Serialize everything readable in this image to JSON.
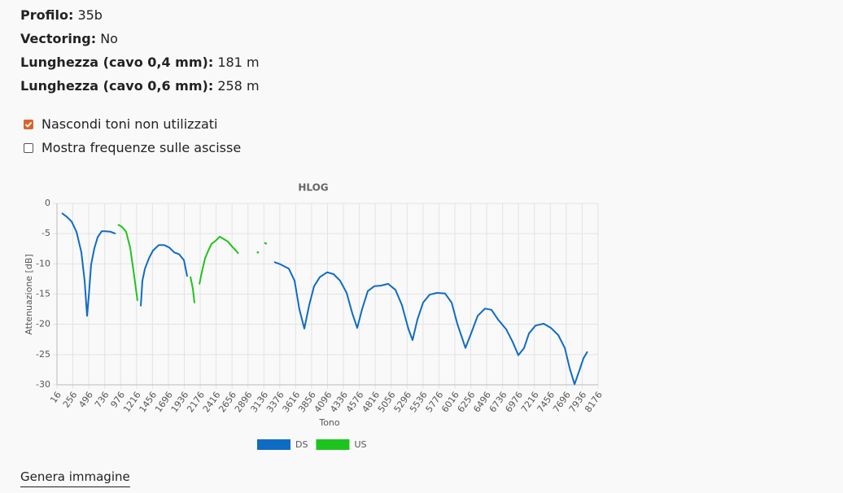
{
  "info": [
    {
      "label": "Profilo:",
      "value": "35b"
    },
    {
      "label": "Vectoring:",
      "value": "No"
    },
    {
      "label": "Lunghezza (cavo 0,4 mm):",
      "value": "181 m"
    },
    {
      "label": "Lunghezza (cavo 0,6 mm):",
      "value": "258 m"
    }
  ],
  "options": [
    {
      "label": "Nascondi toni non utilizzati",
      "checked": true
    },
    {
      "label": "Mostra frequenze sulle ascisse",
      "checked": false
    }
  ],
  "chart_data": {
    "type": "line",
    "title": "HLOG",
    "x_label": "Tono",
    "y_label": "Attenuazione [dB]",
    "xlim": [
      16,
      8176
    ],
    "ylim": [
      -30,
      0
    ],
    "xticks": [
      16,
      256,
      496,
      736,
      976,
      1216,
      1456,
      1696,
      1936,
      2176,
      2416,
      2656,
      2896,
      3136,
      3376,
      3616,
      3856,
      4096,
      4336,
      4576,
      4816,
      5056,
      5296,
      5536,
      5776,
      6016,
      6256,
      6496,
      6736,
      6976,
      7216,
      7456,
      7696,
      7936,
      8176
    ],
    "yticks": [
      0,
      -5,
      -10,
      -15,
      -20,
      -25,
      -30
    ],
    "grid": true,
    "series": [
      {
        "name": "DS",
        "color": "#0f6cc4",
        "x": [
          90,
          163,
          237,
          310,
          384,
          433,
          470,
          494,
          531,
          580,
          629,
          691,
          752,
          826,
          900,
          null,
          1280,
          1305,
          1342,
          1403,
          1464,
          1550,
          1636,
          1710,
          1783,
          1857,
          1931,
          1980,
          null,
          3292,
          3390,
          3513,
          3599,
          3672,
          3746,
          3820,
          3893,
          3979,
          4090,
          4188,
          4286,
          4384,
          4470,
          4544,
          4617,
          4703,
          4801,
          4899,
          5010,
          5120,
          5218,
          5317,
          5378,
          5452,
          5538,
          5636,
          5746,
          5869,
          5967,
          6053,
          6176,
          6262,
          6360,
          6470,
          6568,
          6667,
          6789,
          6888,
          6974,
          7060,
          7134,
          7232,
          7355,
          7465,
          7576,
          7674,
          7747,
          7821,
          7895,
          7956,
          8017
        ],
        "values": [
          -1.6,
          -2.2,
          -3.0,
          -4.7,
          -8.1,
          -12.8,
          -18.6,
          -15.5,
          -10.1,
          -7.4,
          -5.6,
          -4.6,
          -4.6,
          -4.7,
          -5.0,
          null,
          -17.0,
          -12.8,
          -10.8,
          -9.1,
          -7.8,
          -6.9,
          -6.9,
          -7.3,
          -8.1,
          -8.4,
          -9.4,
          -12.1,
          null,
          -9.7,
          -10.1,
          -10.8,
          -12.8,
          -17.5,
          -20.7,
          -16.8,
          -13.7,
          -12.2,
          -11.4,
          -11.7,
          -12.8,
          -14.8,
          -18.2,
          -20.6,
          -17.5,
          -14.5,
          -13.7,
          -13.6,
          -13.3,
          -14.3,
          -16.8,
          -20.8,
          -22.6,
          -19.2,
          -16.4,
          -15.1,
          -14.8,
          -14.9,
          -16.4,
          -19.9,
          -23.9,
          -21.5,
          -18.6,
          -17.4,
          -17.6,
          -19.2,
          -20.8,
          -22.9,
          -25.1,
          -23.9,
          -21.5,
          -20.2,
          -19.9,
          -20.6,
          -21.8,
          -23.9,
          -27.2,
          -29.9,
          -27.6,
          -25.6,
          -24.5
        ]
      },
      {
        "name": "US",
        "color": "#1ec41e",
        "x": [
          936,
          998,
          1059,
          1121,
          1182,
          1231,
          null,
          2028,
          2065,
          2090,
          null,
          2163,
          2200,
          2249,
          2298,
          2347,
          2408,
          2470,
          2531,
          2592,
          2654,
          2715,
          2752,
          null,
          3046,
          null,
          3144,
          3181
        ],
        "values": [
          -3.5,
          -3.9,
          -4.7,
          -7.4,
          -12.1,
          -16.1,
          null,
          -12.1,
          -14.1,
          -16.5,
          null,
          -13.4,
          -11.4,
          -9.1,
          -7.8,
          -6.7,
          -6.2,
          -5.5,
          -5.9,
          -6.3,
          -7.1,
          -7.8,
          -8.3,
          null,
          -8.1,
          null,
          -6.5,
          -6.7
        ]
      }
    ]
  },
  "button": "Genera immagine"
}
